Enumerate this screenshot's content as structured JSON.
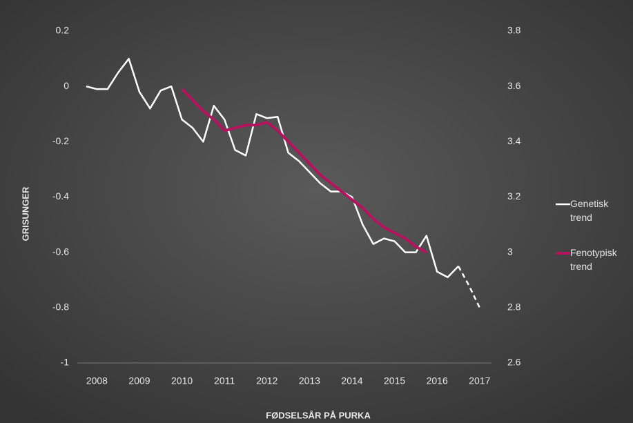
{
  "chart_data": {
    "type": "line",
    "categories": [
      null,
      "2008",
      null,
      null,
      null,
      "2009",
      null,
      null,
      null,
      "2010",
      null,
      null,
      null,
      "2011",
      null,
      null,
      null,
      "2012",
      null,
      null,
      null,
      "2013",
      null,
      null,
      null,
      "2014",
      null,
      null,
      null,
      "2015",
      null,
      null,
      null,
      "2016",
      null,
      null,
      null,
      "2017"
    ],
    "series": [
      {
        "name": "Genetisk trend",
        "color": "#ffffff",
        "axis": "y",
        "values": [
          0,
          -0.01,
          -0.01,
          0.05,
          0.1,
          -0.02,
          -0.08,
          -0.015,
          0,
          -0.12,
          -0.15,
          -0.2,
          -0.07,
          -0.12,
          -0.23,
          -0.25,
          -0.1,
          -0.115,
          -0.11,
          -0.24,
          -0.27,
          -0.31,
          -0.35,
          -0.38,
          -0.38,
          -0.4,
          -0.5,
          -0.57,
          -0.55,
          -0.56,
          -0.6,
          -0.6,
          -0.54,
          -0.67,
          -0.69,
          -0.65,
          null,
          null
        ],
        "projection": [
          null,
          null,
          null,
          null,
          null,
          null,
          null,
          null,
          null,
          null,
          null,
          null,
          null,
          null,
          null,
          null,
          null,
          null,
          null,
          null,
          null,
          null,
          null,
          null,
          null,
          null,
          null,
          null,
          null,
          null,
          null,
          null,
          null,
          null,
          null,
          -0.65,
          -0.72,
          -0.8
        ]
      },
      {
        "name": "Fenotypisk trend",
        "color": "#b5135e",
        "axis": "y2",
        "values": [
          null,
          null,
          null,
          null,
          null,
          null,
          null,
          null,
          null,
          3.59,
          3.55,
          3.51,
          3.48,
          3.44,
          3.45,
          3.46,
          3.46,
          3.47,
          3.44,
          3.4,
          3.36,
          3.32,
          3.28,
          3.25,
          3.22,
          3.19,
          3.16,
          3.12,
          3.09,
          3.07,
          3.05,
          3.02,
          3.0,
          null,
          null,
          null,
          null,
          null
        ]
      }
    ],
    "y_label": "GRISUNGER",
    "x_label": "FØDSELSÅR PÅ PURKA",
    "ylim": [
      -1,
      0.2
    ],
    "yticks": [
      -1,
      -0.8,
      -0.6,
      -0.4,
      -0.2,
      0,
      0.2
    ],
    "y2lim": [
      2.6,
      3.8
    ],
    "y2ticks": [
      2.6,
      2.8,
      3,
      3.2,
      3.4,
      3.6,
      3.8
    ],
    "legend": "right",
    "grid": false
  }
}
